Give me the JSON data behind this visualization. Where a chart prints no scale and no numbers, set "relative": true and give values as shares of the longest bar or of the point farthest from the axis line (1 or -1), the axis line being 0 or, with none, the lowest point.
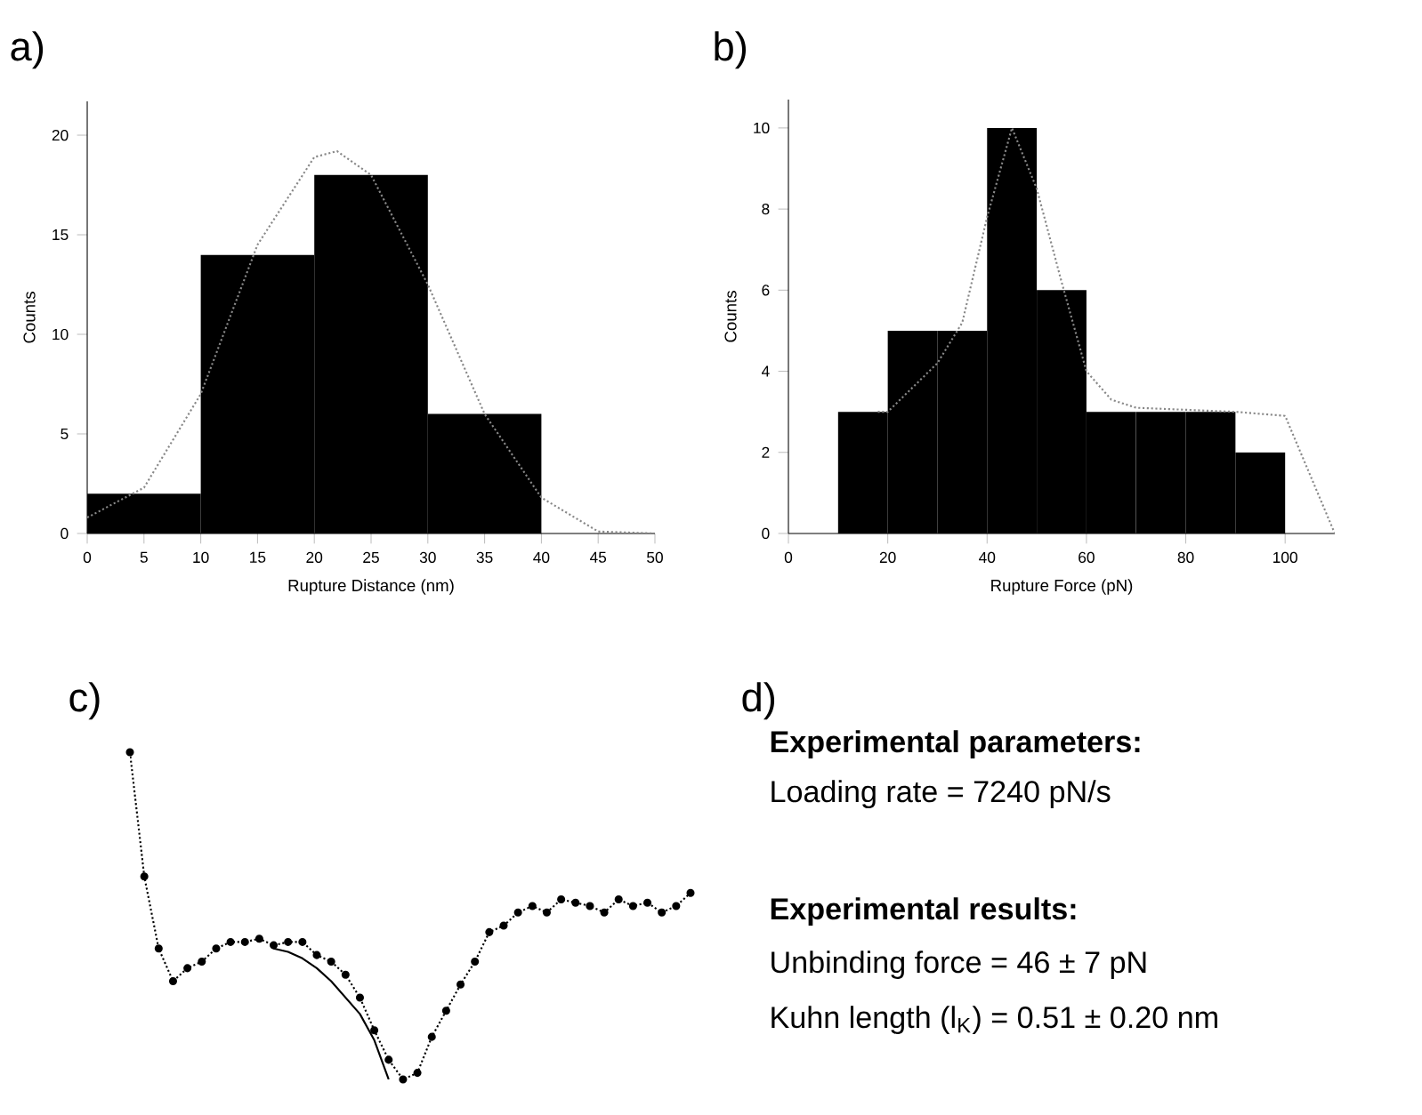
{
  "chart_data": [
    {
      "type": "histogram",
      "title": "a)",
      "xlabel": "Rupture Distance (nm)",
      "ylabel": "Counts",
      "bins": [
        0,
        10,
        20,
        30,
        40
      ],
      "values": [
        2,
        14,
        18,
        6
      ],
      "color": "#000000",
      "xlim": [
        0,
        50
      ],
      "ylim": [
        0,
        21.7
      ],
      "xticks": [
        0,
        5,
        10,
        15,
        20,
        25,
        30,
        35,
        40,
        45,
        50
      ],
      "yticks": [
        0,
        5,
        10,
        15,
        20
      ],
      "series": [
        {
          "type": "line",
          "x": [
            0,
            5,
            10,
            15,
            20,
            22,
            25,
            30,
            35,
            40,
            45,
            50
          ],
          "values": [
            0.8,
            2.3,
            7,
            14.5,
            18.9,
            19.2,
            18,
            12.5,
            6,
            1.8,
            0.1,
            0
          ],
          "color": "#888888",
          "line_style": "dotted"
        }
      ]
    },
    {
      "type": "histogram",
      "title": "b)",
      "xlabel": "Rupture Force (pN)",
      "ylabel": "Counts",
      "bins": [
        10,
        20,
        30,
        40,
        50,
        60,
        70,
        80,
        90,
        100
      ],
      "values": [
        3,
        5,
        5,
        10,
        6,
        3,
        3,
        3,
        2
      ],
      "color": "#000000",
      "xlim": [
        0,
        110
      ],
      "ylim": [
        0,
        10.7
      ],
      "xticks": [
        0,
        20,
        40,
        60,
        80,
        100
      ],
      "yticks": [
        0,
        2,
        4,
        6,
        8,
        10
      ],
      "series": [
        {
          "type": "line",
          "x": [
            18,
            20,
            30,
            35,
            40,
            45,
            50,
            55,
            60,
            65,
            70,
            80,
            90,
            100,
            110
          ],
          "values": [
            3,
            3,
            4.2,
            5.2,
            7.8,
            10,
            8.5,
            6.2,
            4,
            3.3,
            3.1,
            3.05,
            3,
            2.9,
            0
          ],
          "color": "#888888",
          "line_style": "dotted"
        }
      ]
    },
    {
      "type": "line",
      "title": "c)",
      "relative": true,
      "marker": "circle",
      "categories": [
        null,
        null,
        null,
        null,
        null,
        null,
        null,
        null,
        null,
        null,
        null,
        null,
        null,
        null,
        null,
        null,
        null,
        null,
        null,
        null,
        null,
        null,
        null,
        null,
        null,
        null,
        null,
        null,
        null,
        null,
        null,
        null,
        null,
        null,
        null,
        null,
        null,
        null,
        null,
        null
      ],
      "series": [
        {
          "type": "line",
          "line_style": "dotted",
          "color": "#000000",
          "values": [
            1,
            0.62,
            0.4,
            0.3,
            0.34,
            0.36,
            0.4,
            0.42,
            0.42,
            0.43,
            0.41,
            0.42,
            0.42,
            0.38,
            0.36,
            0.32,
            0.25,
            0.15,
            0.06,
            0,
            0.02,
            0.13,
            0.21,
            0.29,
            0.36,
            0.45,
            0.47,
            0.51,
            0.53,
            0.51,
            0.55,
            0.54,
            0.53,
            0.51,
            0.55,
            0.53,
            0.54,
            0.51,
            0.53,
            0.57
          ]
        },
        {
          "type": "line",
          "marker": "none",
          "line_style": "solid",
          "color": "#000000",
          "values": [
            null,
            null,
            null,
            null,
            null,
            null,
            null,
            null,
            null,
            null,
            0.4,
            0.39,
            0.37,
            0.34,
            0.3,
            0.25,
            0.2,
            0.12,
            0,
            null,
            null,
            null,
            null,
            null,
            null,
            null,
            null,
            null,
            null,
            null,
            null,
            null,
            null,
            null,
            null,
            null,
            null,
            null,
            null,
            null
          ]
        }
      ]
    },
    {
      "type": "other",
      "title": "d)",
      "annotations": [
        "**Experimental parameters:**",
        "Loading rate = 7240 pN/s",
        "**Experimental results:**",
        "Unbinding force = 46 ± 7 pN",
        "Kuhn length (l$_{K}$) = 0.51 ± 0.20 nm"
      ]
    }
  ]
}
